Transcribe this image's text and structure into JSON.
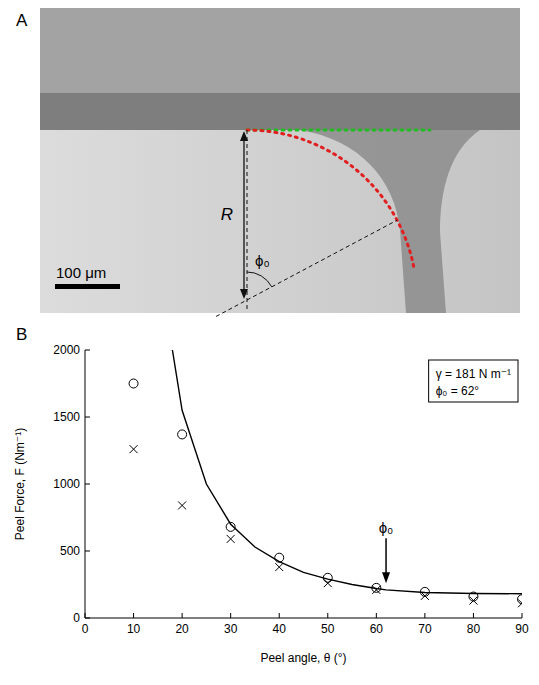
{
  "chart_data": {
    "type": "scatter",
    "panel_label": "B",
    "x_label": "Peel angle, θ (°)",
    "y_label": "Peel Force, F (Nm⁻¹)",
    "xlim": [
      0,
      90
    ],
    "xticks": [
      0,
      10,
      20,
      30,
      40,
      50,
      60,
      70,
      80,
      90
    ],
    "ylim": [
      0,
      2000
    ],
    "yticks": [
      0,
      500,
      1000,
      1500,
      2000
    ],
    "grid": false,
    "series": [
      {
        "type": "line",
        "color": "#000000",
        "line_style": "solid",
        "x": [
          18,
          20,
          25,
          30,
          35,
          40,
          45,
          50,
          55,
          60,
          62,
          70,
          80,
          90
        ],
        "values": [
          2000,
          1550,
          1000,
          700,
          530,
          420,
          340,
          290,
          250,
          220,
          210,
          190,
          183,
          181
        ]
      },
      {
        "type": "scatter",
        "color": "#000000",
        "marker": "circle",
        "x": [
          10,
          20,
          30,
          40,
          50,
          60,
          70,
          80,
          90
        ],
        "values": [
          1750,
          1370,
          680,
          450,
          300,
          225,
          195,
          160,
          140
        ]
      },
      {
        "type": "scatter",
        "color": "#000000",
        "marker": "x",
        "x": [
          10,
          20,
          30,
          40,
          50,
          60,
          70,
          80,
          90
        ],
        "values": [
          1260,
          840,
          590,
          380,
          260,
          210,
          165,
          130,
          110
        ]
      }
    ],
    "text_box": [
      "γ = 181 N m⁻¹",
      "ϕ₀ = 62°"
    ],
    "annotations": [
      {
        "text": "ϕ₀",
        "x": 62,
        "y": 260
      }
    ]
  },
  "micrograph": {
    "panel_label": "A",
    "r_label": "R",
    "angle_label": "ϕ₀",
    "angle": 62,
    "scale_bar": "100 μm"
  }
}
